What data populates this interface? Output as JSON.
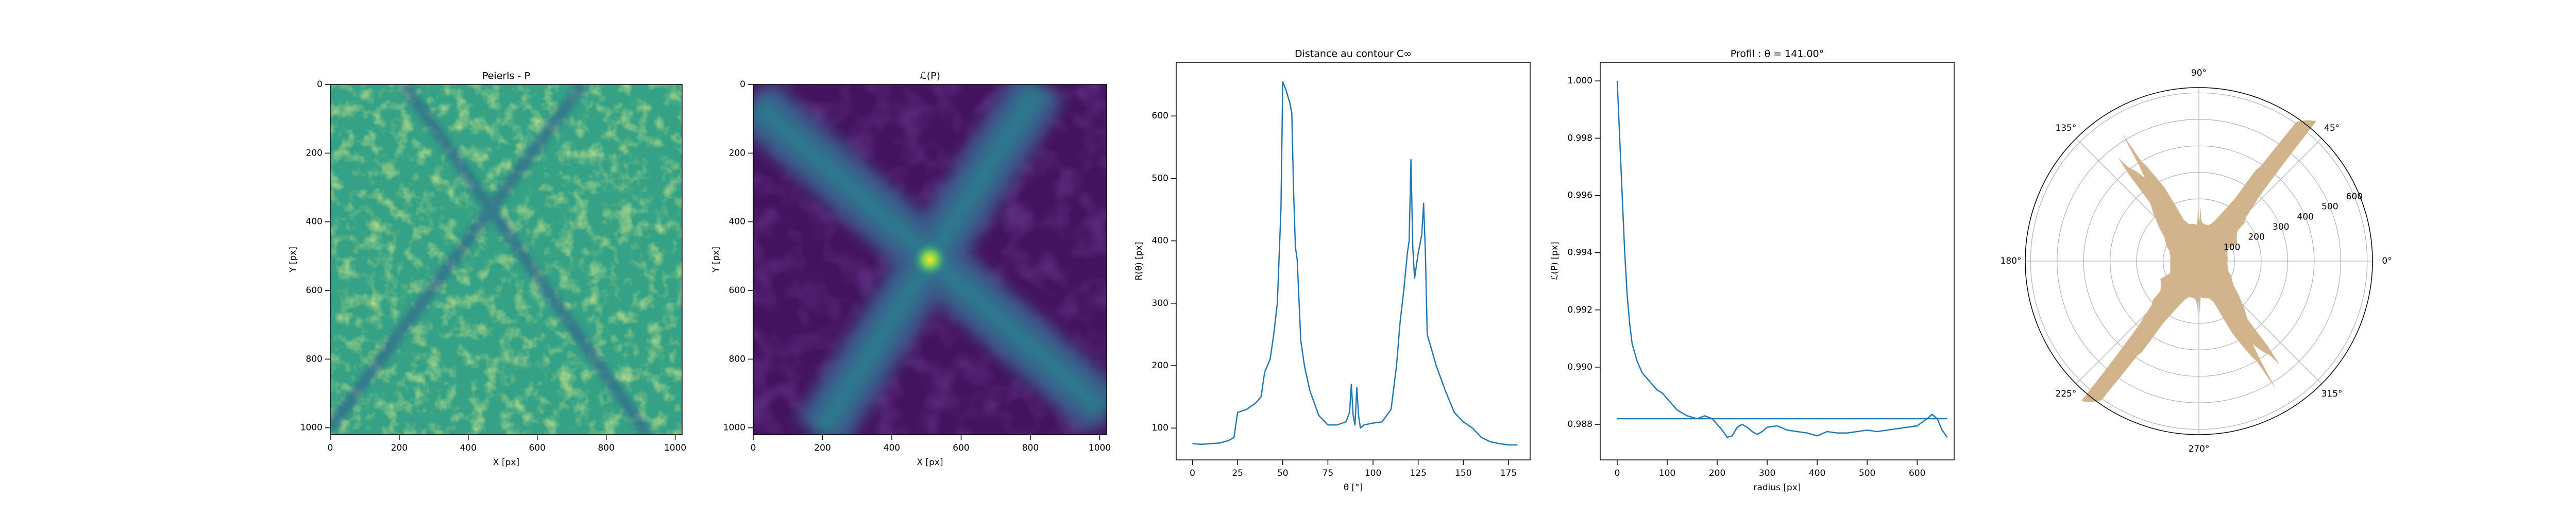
{
  "chart_data": [
    {
      "type": "heatmap",
      "title": "Peierls - P",
      "xlabel": "X [px]",
      "ylabel": "Y [px]",
      "xlim": [
        0,
        1020
      ],
      "ylim": [
        1020,
        0
      ],
      "xticks": [
        0,
        200,
        400,
        600,
        800,
        1000
      ],
      "yticks": [
        0,
        200,
        400,
        600,
        800,
        1000
      ]
    },
    {
      "type": "heatmap",
      "title": "ℒ(P)",
      "xlabel": "X [px]",
      "ylabel": "Y [px]",
      "xlim": [
        0,
        1020
      ],
      "ylim": [
        1020,
        0
      ],
      "xticks": [
        0,
        200,
        400,
        600,
        800,
        1000
      ],
      "yticks": [
        0,
        200,
        400,
        600,
        800,
        1000
      ]
    },
    {
      "type": "line",
      "title": "Distance au contour C∞",
      "xlabel": "θ [°]",
      "ylabel": "R(θ) [px]",
      "xlim": [
        -9,
        187
      ],
      "ylim": [
        49,
        686
      ],
      "xticks": [
        0,
        25,
        50,
        75,
        100,
        125,
        150,
        175
      ],
      "yticks": [
        100,
        200,
        300,
        400,
        500,
        600
      ],
      "x": [
        0,
        5,
        10,
        15,
        20,
        23,
        25,
        30,
        35,
        38,
        40,
        43,
        45,
        47,
        49,
        50,
        52,
        54,
        55,
        56,
        57,
        58,
        60,
        62,
        65,
        70,
        75,
        80,
        85,
        87,
        88,
        89,
        90,
        91,
        92,
        93,
        95,
        100,
        105,
        110,
        113,
        115,
        117,
        119,
        120,
        121,
        122,
        123,
        125,
        127,
        128,
        129,
        130,
        133,
        135,
        140,
        145,
        150,
        155,
        160,
        165,
        170,
        175,
        180
      ],
      "series": [
        {
          "color": "#1f77b4",
          "values": [
            75,
            74,
            75,
            76,
            80,
            85,
            125,
            130,
            140,
            150,
            190,
            210,
            250,
            300,
            450,
            655,
            640,
            620,
            605,
            480,
            390,
            370,
            240,
            200,
            160,
            120,
            105,
            105,
            110,
            125,
            170,
            120,
            105,
            165,
            120,
            100,
            105,
            108,
            110,
            130,
            200,
            270,
            320,
            380,
            400,
            530,
            390,
            340,
            380,
            410,
            460,
            380,
            250,
            220,
            200,
            160,
            125,
            110,
            100,
            85,
            78,
            75,
            73,
            73
          ]
        }
      ]
    },
    {
      "type": "line",
      "title": "Profil : θ = 141.00°",
      "xlabel": "radius [px]",
      "ylabel": "ℒ(P) [px]",
      "xlim": [
        -34,
        674
      ],
      "ylim": [
        0.98676,
        1.00065
      ],
      "xticks": [
        0,
        100,
        200,
        300,
        400,
        500,
        600
      ],
      "yticks": [
        {
          "value": 0.988,
          "label": "0.988"
        },
        {
          "value": 0.99,
          "label": "0.990"
        },
        0.992,
        0.994,
        0.996,
        0.998,
        {
          "value": 1,
          "label": "1.000"
        }
      ],
      "series": [
        {
          "color": "#1f77b4",
          "x": [
            0,
            5,
            10,
            15,
            20,
            25,
            30,
            40,
            50,
            60,
            70,
            80,
            90,
            100,
            110,
            120,
            130,
            140,
            150,
            160,
            175,
            190,
            200,
            210,
            220,
            230,
            240,
            250,
            260,
            270,
            280,
            290,
            300,
            320,
            340,
            360,
            380,
            400,
            420,
            440,
            460,
            480,
            500,
            520,
            540,
            560,
            580,
            600,
            620,
            630,
            640,
            650,
            660
          ],
          "values": [
            1.0,
            0.998,
            0.996,
            0.994,
            0.9925,
            0.9915,
            0.9908,
            0.9902,
            0.9898,
            0.9896,
            0.9894,
            0.9892,
            0.9891,
            0.9889,
            0.9887,
            0.9885,
            0.9884,
            0.9883,
            0.98825,
            0.9882,
            0.9883,
            0.9882,
            0.988,
            0.9878,
            0.98755,
            0.9876,
            0.9879,
            0.988,
            0.9879,
            0.98775,
            0.98765,
            0.98775,
            0.9879,
            0.98795,
            0.9878,
            0.98775,
            0.9877,
            0.9876,
            0.98775,
            0.9877,
            0.9877,
            0.98775,
            0.9878,
            0.98775,
            0.9878,
            0.98785,
            0.9879,
            0.98795,
            0.9882,
            0.98835,
            0.9882,
            0.9878,
            0.98755
          ]
        },
        {
          "color": "#1f77b4",
          "x": [
            0,
            660
          ],
          "values": [
            0.9882,
            0.9882
          ]
        }
      ]
    },
    {
      "type": "polar",
      "color": "#d2b48c",
      "rlim": [
        -35,
        620
      ],
      "rticks": [
        100,
        200,
        300,
        400,
        500,
        600
      ],
      "thetaticks": [
        {
          "value": 0,
          "label": "0°"
        },
        {
          "value": 45,
          "label": "45°"
        },
        {
          "value": 90,
          "label": "90°"
        },
        {
          "value": 135,
          "label": "135°"
        },
        {
          "value": 180,
          "label": "180°"
        },
        {
          "value": 225,
          "label": "225°"
        },
        {
          "value": 270,
          "label": "270°"
        },
        {
          "value": 315,
          "label": "315°"
        }
      ],
      "theta": [
        0,
        5,
        10,
        15,
        20,
        23,
        25,
        30,
        35,
        38,
        40,
        43,
        45,
        47,
        49,
        50,
        52,
        54,
        55,
        56,
        57,
        58,
        60,
        62,
        65,
        70,
        75,
        80,
        85,
        87,
        88,
        89,
        90,
        91,
        92,
        93,
        95,
        100,
        105,
        110,
        113,
        115,
        117,
        119,
        120,
        121,
        122,
        123,
        125,
        127,
        128,
        129,
        130,
        133,
        135,
        140,
        145,
        150,
        155,
        160,
        165,
        170,
        175,
        180,
        185,
        190,
        195,
        200,
        203,
        205,
        210,
        215,
        218,
        220,
        223,
        225,
        227,
        229,
        230,
        232,
        234,
        235,
        236,
        237,
        238,
        240,
        242,
        245,
        250,
        255,
        260,
        265,
        267,
        268,
        269,
        270,
        271,
        272,
        273,
        275,
        280,
        285,
        290,
        293,
        295,
        297,
        299,
        300,
        301,
        302,
        303,
        305,
        307,
        308,
        309,
        310,
        313,
        315,
        320,
        325,
        330,
        335,
        340,
        345,
        350,
        355,
        360
      ],
      "r": [
        75,
        74,
        75,
        76,
        80,
        85,
        125,
        130,
        140,
        150,
        190,
        210,
        250,
        300,
        450,
        655,
        640,
        620,
        605,
        480,
        390,
        370,
        240,
        200,
        160,
        120,
        105,
        105,
        110,
        125,
        170,
        120,
        105,
        165,
        120,
        100,
        105,
        108,
        110,
        130,
        200,
        270,
        320,
        380,
        400,
        530,
        390,
        340,
        380,
        410,
        460,
        380,
        250,
        220,
        200,
        160,
        125,
        110,
        100,
        85,
        78,
        75,
        73,
        73,
        74,
        75,
        76,
        80,
        85,
        125,
        130,
        140,
        150,
        190,
        210,
        250,
        300,
        450,
        655,
        640,
        620,
        605,
        480,
        390,
        370,
        240,
        200,
        160,
        120,
        105,
        105,
        110,
        125,
        170,
        120,
        105,
        165,
        120,
        100,
        105,
        108,
        110,
        130,
        200,
        270,
        320,
        380,
        400,
        530,
        390,
        340,
        380,
        410,
        460,
        380,
        250,
        220,
        200,
        160,
        125,
        110,
        100,
        85,
        78,
        75,
        73,
        73
      ]
    }
  ]
}
